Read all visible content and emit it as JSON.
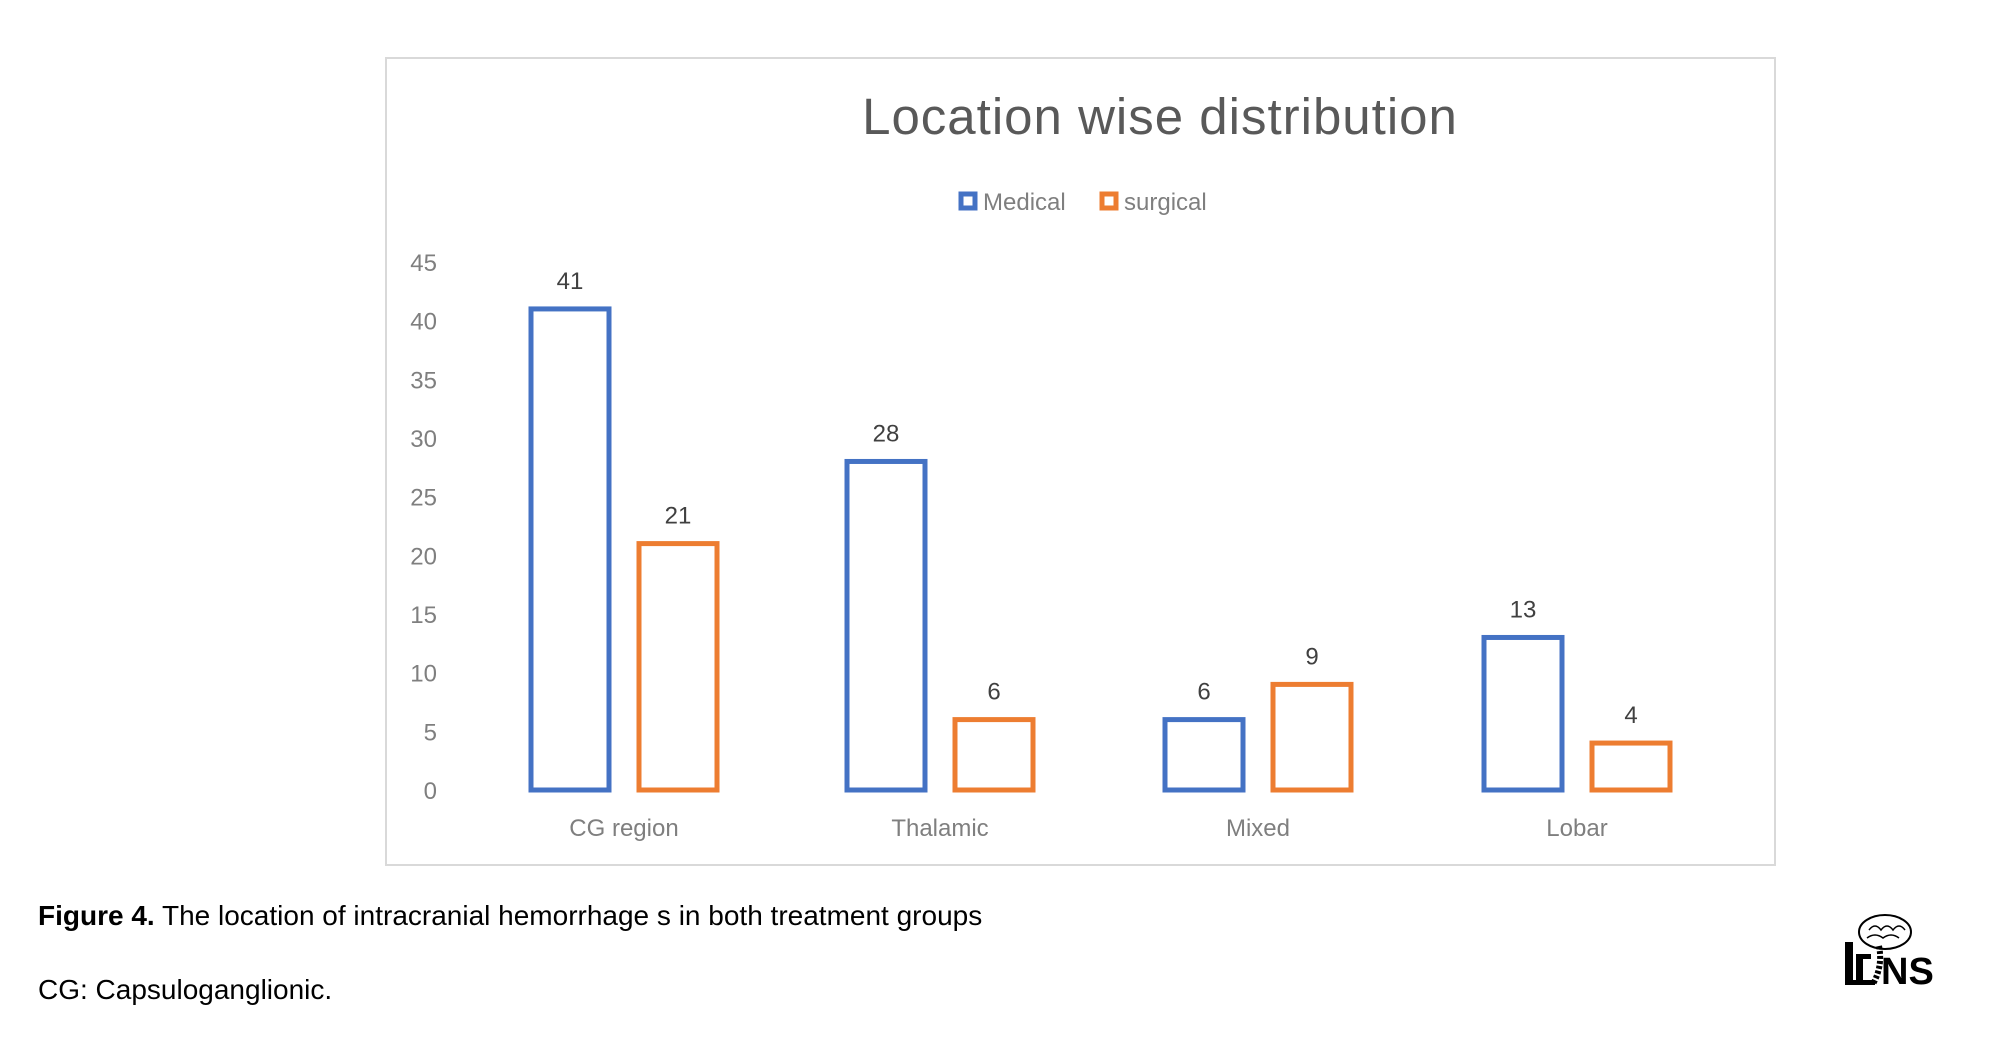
{
  "chart_data": {
    "type": "bar",
    "title": "Location wise distribution",
    "categories": [
      "CG region",
      "Thalamic",
      "Mixed",
      "Lobar"
    ],
    "series": [
      {
        "name": "Medical",
        "color": "#4472C4",
        "values": [
          41,
          28,
          6,
          13
        ]
      },
      {
        "name": "surgical",
        "color": "#ED7D31",
        "values": [
          21,
          6,
          9,
          4
        ]
      }
    ],
    "xlabel": "",
    "ylabel": "",
    "ylim": [
      0,
      45
    ],
    "yticks": [
      0,
      5,
      10,
      15,
      20,
      25,
      30,
      35,
      40,
      45
    ],
    "grid": false,
    "legend": "top-center",
    "data_labels": true
  },
  "caption": {
    "figure_label": "Figure 4.",
    "text": " The location of intracranial hemorrhage s in both treatment groups",
    "note": "CG: Capsuloganglionic."
  },
  "logo": {
    "text": "IrJNS"
  }
}
